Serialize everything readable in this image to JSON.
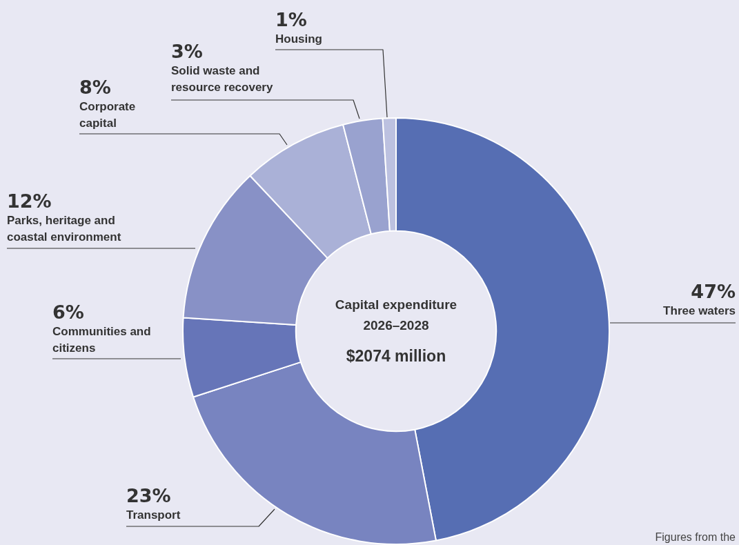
{
  "chart_data": {
    "type": "donut",
    "title": "Capital expenditure 2026–2028",
    "subtitle": "$2074 million",
    "categories": [
      "Three waters",
      "Transport",
      "Communities and citizens",
      "Parks, heritage and coastal environment",
      "Corporate capital",
      "Solid waste and resource recovery",
      "Housing"
    ],
    "values": [
      47,
      23,
      6,
      12,
      8,
      3,
      1
    ],
    "colors": [
      "#566eb3",
      "#7884c0",
      "#6675b8",
      "#8891c6",
      "#aab1d7",
      "#99a2cf",
      "#bcc1e0"
    ],
    "value_labels": [
      "47%",
      "23%",
      "6%",
      "12%",
      "8%",
      "3%",
      "1%"
    ],
    "annotations": [
      "Figures from the"
    ],
    "legend": false
  }
}
